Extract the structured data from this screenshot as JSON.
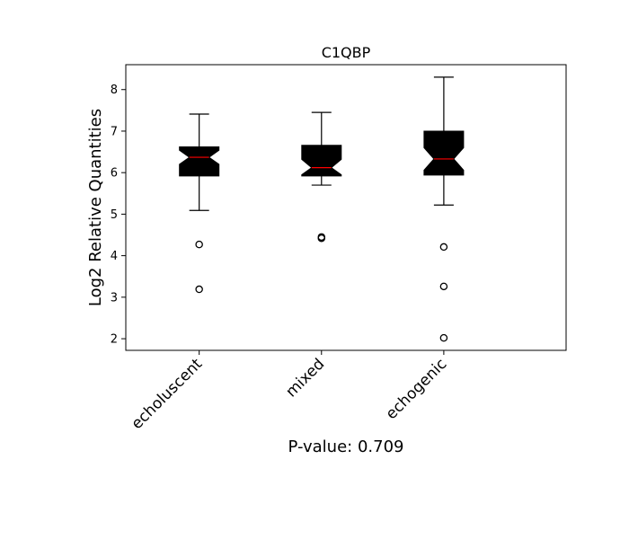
{
  "chart_data": {
    "type": "boxplot",
    "title": "C1QBP",
    "xlabel": "P-value: 0.709",
    "ylabel": "Log2 Relative Quantities",
    "categories": [
      "echoluscent",
      "mixed",
      "echogenic"
    ],
    "ylim": [
      1.72,
      8.6
    ],
    "xlim": [
      0.4,
      4.0
    ],
    "yticks": [
      2,
      3,
      4,
      5,
      6,
      7,
      8
    ],
    "grid": false,
    "notched": true,
    "box_color": "#000000",
    "median_color": "#ff0000",
    "boxes": [
      {
        "category": "echoluscent",
        "whisker_low": 5.09,
        "q1": 5.92,
        "notch_low": 6.2,
        "median": 6.37,
        "notch_high": 6.54,
        "q3": 6.62,
        "whisker_high": 7.41,
        "outliers": [
          4.27,
          3.19
        ]
      },
      {
        "category": "mixed",
        "whisker_low": 5.7,
        "q1": 5.92,
        "notch_low": 5.95,
        "median": 6.12,
        "notch_high": 6.32,
        "q3": 6.66,
        "whisker_high": 7.45,
        "outliers": [
          4.45,
          4.42
        ]
      },
      {
        "category": "echogenic",
        "whisker_low": 5.22,
        "q1": 5.94,
        "notch_low": 6.06,
        "median": 6.33,
        "notch_high": 6.6,
        "q3": 7.0,
        "whisker_high": 8.3,
        "outliers": [
          4.21,
          3.26,
          2.02
        ]
      }
    ]
  }
}
